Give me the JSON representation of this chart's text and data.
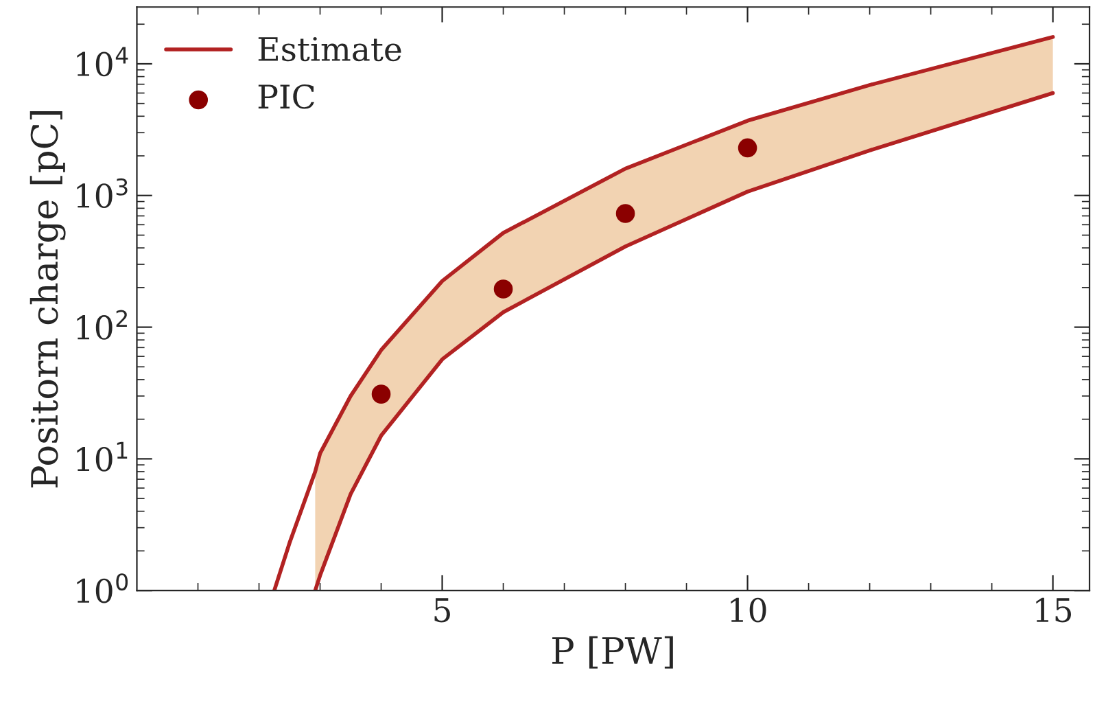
{
  "chart_data": {
    "type": "line",
    "xlabel": "P [PW]",
    "ylabel": "Positorn charge [pC]",
    "log": "y",
    "xlim": [
      0,
      15.6
    ],
    "xticks": [
      5,
      10,
      15
    ],
    "ylim": [
      1,
      27000
    ],
    "yticks": [
      {
        "value": 1,
        "label": "10$^{0}$"
      },
      {
        "value": 10,
        "label": "10$^{1}$"
      },
      {
        "value": 100,
        "label": "10$^{2}$"
      },
      {
        "value": 1000,
        "label": "10$^{3}$"
      },
      {
        "value": 10000,
        "label": "10$^{4}$"
      }
    ],
    "legend": "top left",
    "grid": false,
    "series": [
      {
        "name": "Estimate",
        "color": "#b22222",
        "x": [
          2.25,
          2.5,
          2.92,
          3,
          3.5,
          4,
          5,
          6,
          8,
          10,
          12,
          15
        ],
        "values": [
          1,
          2.3,
          8,
          11,
          30,
          67,
          224,
          520,
          1600,
          3700,
          6900,
          16000
        ],
        "lower": [
          null,
          null,
          1,
          1.3,
          5.4,
          15,
          57,
          130,
          410,
          1070,
          2200,
          6000
        ],
        "upper": [
          null,
          null,
          8,
          11,
          30,
          67,
          224,
          520,
          1600,
          3700,
          6900,
          16000
        ]
      },
      {
        "color": "#b22222",
        "x": [
          2.92,
          3,
          3.5,
          4,
          5,
          6,
          8,
          10,
          12,
          15
        ],
        "values": [
          1,
          1.3,
          5.4,
          15,
          57,
          130,
          410,
          1070,
          2200,
          6000
        ]
      },
      {
        "name": "PIC",
        "type": "scatter",
        "color": "#8b0000",
        "marker": "circle",
        "x": [
          4,
          6,
          8,
          10
        ],
        "values": [
          31,
          195,
          730,
          2300
        ]
      }
    ]
  }
}
